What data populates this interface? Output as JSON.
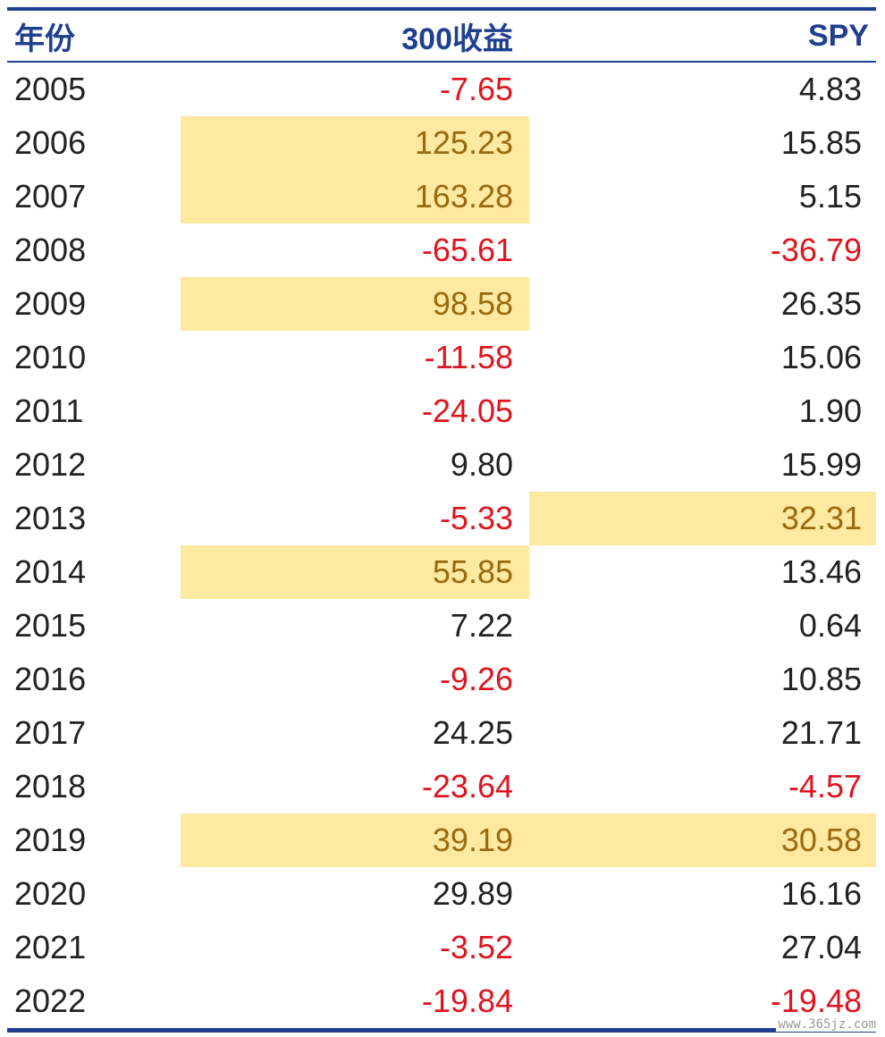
{
  "chart_data": {
    "type": "table",
    "headers": [
      "年份",
      "300收益",
      "SPY"
    ],
    "rows": [
      {
        "year": "2005",
        "a": "-7.65",
        "b": "4.83"
      },
      {
        "year": "2006",
        "a": "125.23",
        "b": "15.85"
      },
      {
        "year": "2007",
        "a": "163.28",
        "b": "5.15"
      },
      {
        "year": "2008",
        "a": "-65.61",
        "b": "-36.79"
      },
      {
        "year": "2009",
        "a": "98.58",
        "b": "26.35"
      },
      {
        "year": "2010",
        "a": "-11.58",
        "b": "15.06"
      },
      {
        "year": "2011",
        "a": "-24.05",
        "b": "1.90"
      },
      {
        "year": "2012",
        "a": "9.80",
        "b": "15.99"
      },
      {
        "year": "2013",
        "a": "-5.33",
        "b": "32.31"
      },
      {
        "year": "2014",
        "a": "55.85",
        "b": "13.46"
      },
      {
        "year": "2015",
        "a": "7.22",
        "b": "0.64"
      },
      {
        "year": "2016",
        "a": "-9.26",
        "b": "10.85"
      },
      {
        "year": "2017",
        "a": "24.25",
        "b": "21.71"
      },
      {
        "year": "2018",
        "a": "-23.64",
        "b": "-4.57"
      },
      {
        "year": "2019",
        "a": "39.19",
        "b": "30.58"
      },
      {
        "year": "2020",
        "a": "29.89",
        "b": "16.16"
      },
      {
        "year": "2021",
        "a": "-3.52",
        "b": "27.04"
      },
      {
        "year": "2022",
        "a": "-19.84",
        "b": "-19.48"
      }
    ],
    "highlighted_cells": [
      {
        "year": "2006",
        "column": "300收益"
      },
      {
        "year": "2007",
        "column": "300收益"
      },
      {
        "year": "2009",
        "column": "300收益"
      },
      {
        "year": "2013",
        "column": "SPY"
      },
      {
        "year": "2014",
        "column": "300收益"
      },
      {
        "year": "2019",
        "column": "300收益"
      },
      {
        "year": "2019",
        "column": "SPY"
      }
    ],
    "colors": {
      "header_text": "#1f3f8f",
      "rule": "#1f3f8f",
      "negative_text": "#e0141e",
      "highlight_fill": "#fde9a0",
      "highlight_text": "#9a6a10",
      "default_text": "#222222"
    }
  },
  "watermark": "www.365jz.com"
}
